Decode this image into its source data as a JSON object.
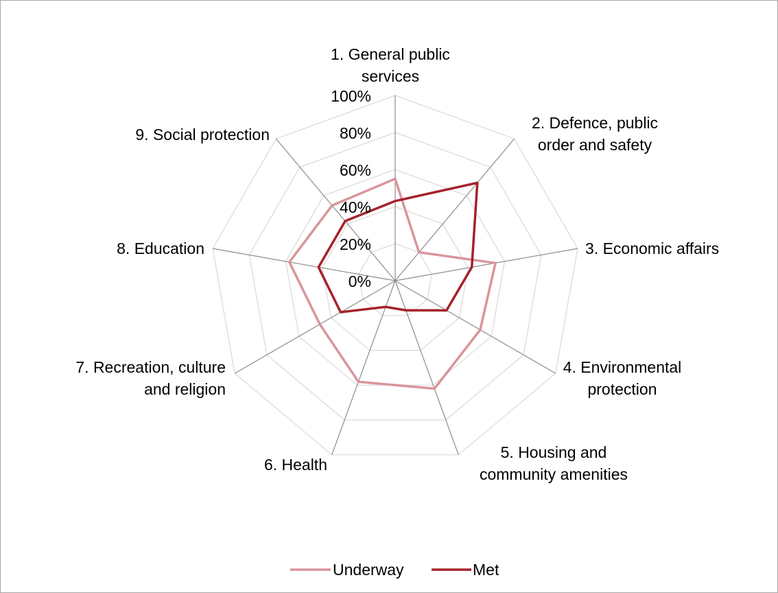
{
  "chart_data": {
    "type": "radar",
    "title": "",
    "categories": [
      "1. General public services",
      "2. Defence, public order and safety",
      "3. Economic affairs",
      "4. Environmental protection",
      "5. Housing and community amenities",
      "6. Health",
      "7. Recreation, culture and religion",
      "8. Education",
      "9. Social protection"
    ],
    "category_lines": [
      [
        "1. General public",
        "services"
      ],
      [
        "2. Defence, public",
        "order and safety"
      ],
      [
        "3. Economic affairs"
      ],
      [
        "4. Environmental",
        "protection"
      ],
      [
        "5. Housing and",
        "community amenities"
      ],
      [
        "6. Health"
      ],
      [
        "7. Recreation, culture",
        "and religion"
      ],
      [
        "8. Education"
      ],
      [
        "9. Social protection"
      ]
    ],
    "radial_ticks": [
      "0%",
      "20%",
      "40%",
      "60%",
      "80%",
      "100%"
    ],
    "rlim": [
      0,
      100
    ],
    "series": [
      {
        "name": "Underway",
        "color": "#d9959b",
        "values": [
          55,
          20,
          55,
          53,
          62,
          58,
          47,
          58,
          53
        ]
      },
      {
        "name": "Met",
        "color": "#a5212b",
        "values": [
          43,
          69,
          42,
          32,
          17,
          15,
          34,
          42,
          42
        ]
      }
    ],
    "grid": true,
    "legend_position": "bottom"
  }
}
